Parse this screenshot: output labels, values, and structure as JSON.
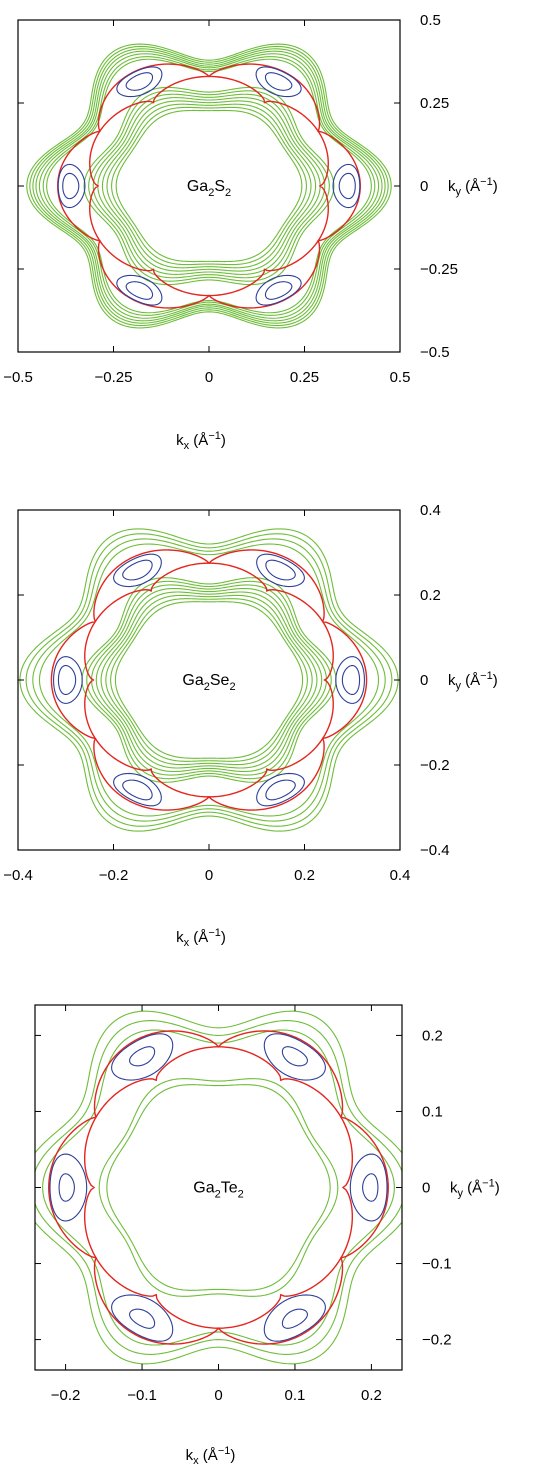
{
  "chart_data": [
    {
      "type": "contour",
      "panel_name": "ga2s2",
      "material": {
        "parts": [
          [
            "Ga",
            ""
          ],
          [
            "2",
            "sub"
          ],
          [
            "S",
            ""
          ],
          [
            "2",
            "sub"
          ]
        ]
      },
      "xlabel": {
        "base": "k",
        "sub": "x",
        "unit_open": " (Å",
        "sup": "−1",
        "unit_close": ")"
      },
      "ylabel": {
        "base": "k",
        "sub": "y",
        "unit_open": " (Å",
        "sup": "−1",
        "unit_close": ")"
      },
      "xlim": [
        -0.5,
        0.5
      ],
      "ylim": [
        -0.5,
        0.5
      ],
      "xticks": [
        -0.5,
        -0.25,
        0,
        0.25,
        0.5
      ],
      "xtick_labels": [
        "−0.5",
        "−0.25",
        "0",
        "0.25",
        "0.5"
      ],
      "yticks": [
        0.5,
        0.25,
        0,
        -0.25,
        -0.5
      ],
      "ytick_labels": [
        "0.5",
        "0.25",
        "0",
        "−0.25",
        "−0.5"
      ],
      "colors": {
        "outer": "#6ebd3a",
        "separatrix": "#e3261e",
        "pocket": "#2d3f9a"
      },
      "saddle_radius": 0.33,
      "pocket_radius": 0.365,
      "green_contours": [
        {
          "r": 0.235,
          "a": 0.008
        },
        {
          "r": 0.245,
          "a": 0.01
        },
        {
          "r": 0.255,
          "a": 0.012
        },
        {
          "r": 0.265,
          "a": 0.014
        },
        {
          "r": 0.275,
          "a": 0.016
        },
        {
          "r": 0.285,
          "a": 0.018
        },
        {
          "r": 0.295,
          "a": 0.02
        },
        {
          "r": 0.305,
          "a": 0.022
        },
        {
          "r": 0.385,
          "a": 0.04
        },
        {
          "r": 0.392,
          "a": 0.042
        },
        {
          "r": 0.4,
          "a": 0.044
        },
        {
          "r": 0.407,
          "a": 0.046
        },
        {
          "r": 0.414,
          "a": 0.047
        },
        {
          "r": 0.421,
          "a": 0.048
        },
        {
          "r": 0.428,
          "a": 0.049
        }
      ],
      "pocket_sizes": [
        [
          0.035,
          0.065
        ],
        [
          0.021,
          0.038
        ]
      ]
    },
    {
      "type": "contour",
      "panel_name": "ga2se2",
      "material": {
        "parts": [
          [
            "Ga",
            ""
          ],
          [
            "2",
            "sub"
          ],
          [
            "Se",
            ""
          ],
          [
            "2",
            "sub"
          ]
        ]
      },
      "xlabel": {
        "base": "k",
        "sub": "x",
        "unit_open": " (Å",
        "sup": "−1",
        "unit_close": ")"
      },
      "ylabel": {
        "base": "k",
        "sub": "y",
        "unit_open": " (Å",
        "sup": "−1",
        "unit_close": ")"
      },
      "xlim": [
        -0.4,
        0.4
      ],
      "ylim": [
        -0.4,
        0.4
      ],
      "xticks": [
        -0.4,
        -0.2,
        0,
        0.2,
        0.4
      ],
      "xtick_labels": [
        "−0.4",
        "−0.2",
        "0",
        "0.2",
        "0.4"
      ],
      "yticks": [
        0.4,
        0.2,
        0,
        -0.2,
        -0.4
      ],
      "ytick_labels": [
        "0.4",
        "0.2",
        "0",
        "−0.2",
        "−0.4"
      ],
      "colors": {
        "outer": "#6ebd3a",
        "separatrix": "#e3261e",
        "pocket": "#2d3f9a"
      },
      "saddle_radius": 0.275,
      "pocket_radius": 0.3,
      "green_contours": [
        {
          "r": 0.19,
          "a": 0.006
        },
        {
          "r": 0.198,
          "a": 0.008
        },
        {
          "r": 0.206,
          "a": 0.01
        },
        {
          "r": 0.214,
          "a": 0.012
        },
        {
          "r": 0.222,
          "a": 0.014
        },
        {
          "r": 0.23,
          "a": 0.016
        },
        {
          "r": 0.238,
          "a": 0.018
        },
        {
          "r": 0.246,
          "a": 0.02
        },
        {
          "r": 0.325,
          "a": 0.03
        },
        {
          "r": 0.336,
          "a": 0.033
        },
        {
          "r": 0.347,
          "a": 0.036
        },
        {
          "r": 0.358,
          "a": 0.038
        }
      ],
      "pocket_sizes": [
        [
          0.03,
          0.055
        ],
        [
          0.018,
          0.034
        ]
      ]
    },
    {
      "type": "contour",
      "panel_name": "ga2te2",
      "material": {
        "parts": [
          [
            "Ga",
            ""
          ],
          [
            "2",
            "sub"
          ],
          [
            "Te",
            ""
          ],
          [
            "2",
            "sub"
          ]
        ]
      },
      "xlabel": {
        "base": "k",
        "sub": "x",
        "unit_open": " (Å",
        "sup": "−1",
        "unit_close": ")"
      },
      "ylabel": {
        "base": "k",
        "sub": "y",
        "unit_open": " (Å",
        "sup": "−1",
        "unit_close": ")"
      },
      "xlim": [
        -0.24,
        0.24
      ],
      "ylim": [
        -0.24,
        0.24
      ],
      "xticks": [
        -0.2,
        -0.1,
        0,
        0.1,
        0.2
      ],
      "xtick_labels": [
        "−0.2",
        "−0.1",
        "0",
        "0.1",
        "0.2"
      ],
      "yticks": [
        0.2,
        0.1,
        0,
        -0.1,
        -0.2
      ],
      "ytick_labels": [
        "0.2",
        "0.1",
        "0",
        "−0.1",
        "−0.2"
      ],
      "colors": {
        "outer": "#6ebd3a",
        "separatrix": "#e3261e",
        "pocket": "#2d3f9a"
      },
      "saddle_radius": 0.185,
      "pocket_radius": 0.2,
      "green_contours": [
        {
          "r": 0.14,
          "a": 0.006
        },
        {
          "r": 0.148,
          "a": 0.008
        },
        {
          "r": 0.21,
          "a": 0.02
        },
        {
          "r": 0.222,
          "a": 0.022
        },
        {
          "r": 0.234,
          "a": 0.024
        }
      ],
      "pocket_sizes": [
        [
          0.024,
          0.044
        ],
        [
          0.01,
          0.018
        ]
      ]
    }
  ]
}
